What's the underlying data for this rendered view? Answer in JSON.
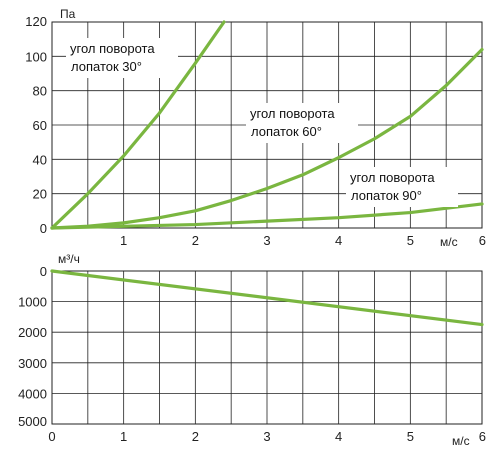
{
  "chart_data": [
    {
      "type": "line",
      "xlabel": "м/с",
      "ylabel": "Па",
      "xlim": [
        0,
        6
      ],
      "ylim": [
        0,
        120
      ],
      "x_ticks": [
        1,
        2,
        3,
        4,
        5,
        6
      ],
      "y_ticks": [
        0,
        20,
        40,
        60,
        80,
        100,
        120
      ],
      "grid": true,
      "series_color": "#7ab640",
      "series": [
        {
          "name": "угол поворота лопаток 30°",
          "label_lines": [
            "угол поворота",
            "лопаток 30°"
          ],
          "x": [
            0,
            0.5,
            1.0,
            1.5,
            2.0,
            2.2,
            2.4
          ],
          "y": [
            0,
            20,
            42,
            67,
            96,
            108,
            120
          ]
        },
        {
          "name": "угол поворота лопаток 60°",
          "label_lines": [
            "угол поворота",
            "лопаток 60°"
          ],
          "x": [
            0,
            0.5,
            1.0,
            1.5,
            2.0,
            2.5,
            3.0,
            3.5,
            4.0,
            4.5,
            5.0,
            5.5,
            6.0
          ],
          "y": [
            0,
            1,
            3,
            6,
            10,
            16,
            23,
            31,
            41,
            52,
            65,
            83,
            104
          ]
        },
        {
          "name": "угол поворота лопаток 90°",
          "label_lines": [
            "угол поворота",
            "лопаток 90°"
          ],
          "x": [
            0,
            1.0,
            2.0,
            3.0,
            4.0,
            5.0,
            6.0
          ],
          "y": [
            0,
            1,
            2,
            4,
            6,
            9,
            14
          ]
        }
      ]
    },
    {
      "type": "line",
      "xlabel": "м/с",
      "ylabel": "м³/ч",
      "xlim": [
        0,
        6
      ],
      "ylim": [
        5000,
        0
      ],
      "y_inverted": true,
      "x_ticks": [
        0,
        1,
        2,
        3,
        4,
        5,
        6
      ],
      "y_ticks": [
        0,
        1000,
        2000,
        3000,
        4000,
        5000
      ],
      "grid": true,
      "series_color": "#7ab640",
      "series": [
        {
          "x": [
            0,
            6
          ],
          "y": [
            0,
            1750
          ]
        }
      ]
    }
  ]
}
